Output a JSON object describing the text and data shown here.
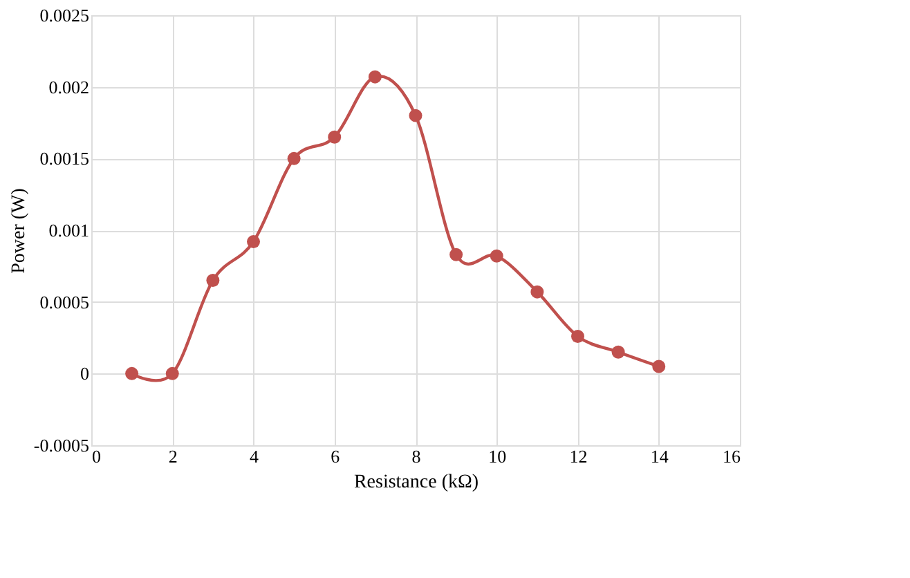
{
  "chart_data": {
    "type": "line",
    "xlabel": "Resistance (kΩ)",
    "ylabel": "Power (W)",
    "x": [
      1,
      2,
      3,
      4,
      5,
      6,
      7,
      8,
      9,
      10,
      11,
      12,
      13,
      14
    ],
    "series": [
      {
        "color": "#c0504d",
        "values": [
          0,
          0,
          0.00065,
          0.00092,
          0.0015,
          0.00165,
          0.00207,
          0.0018,
          0.00083,
          0.00082,
          0.00057,
          0.00026,
          0.00015,
          5e-05
        ]
      }
    ],
    "xlim": [
      0,
      16
    ],
    "xticks": [
      0,
      2,
      4,
      6,
      8,
      10,
      12,
      14,
      16
    ],
    "ylim": [
      -0.0005,
      0.0025
    ],
    "yticks": [
      -0.0005,
      0,
      0.0005,
      0.001,
      0.0015,
      0.002,
      0.0025
    ],
    "grid": true,
    "marker": "circle",
    "line_style": "solid"
  }
}
